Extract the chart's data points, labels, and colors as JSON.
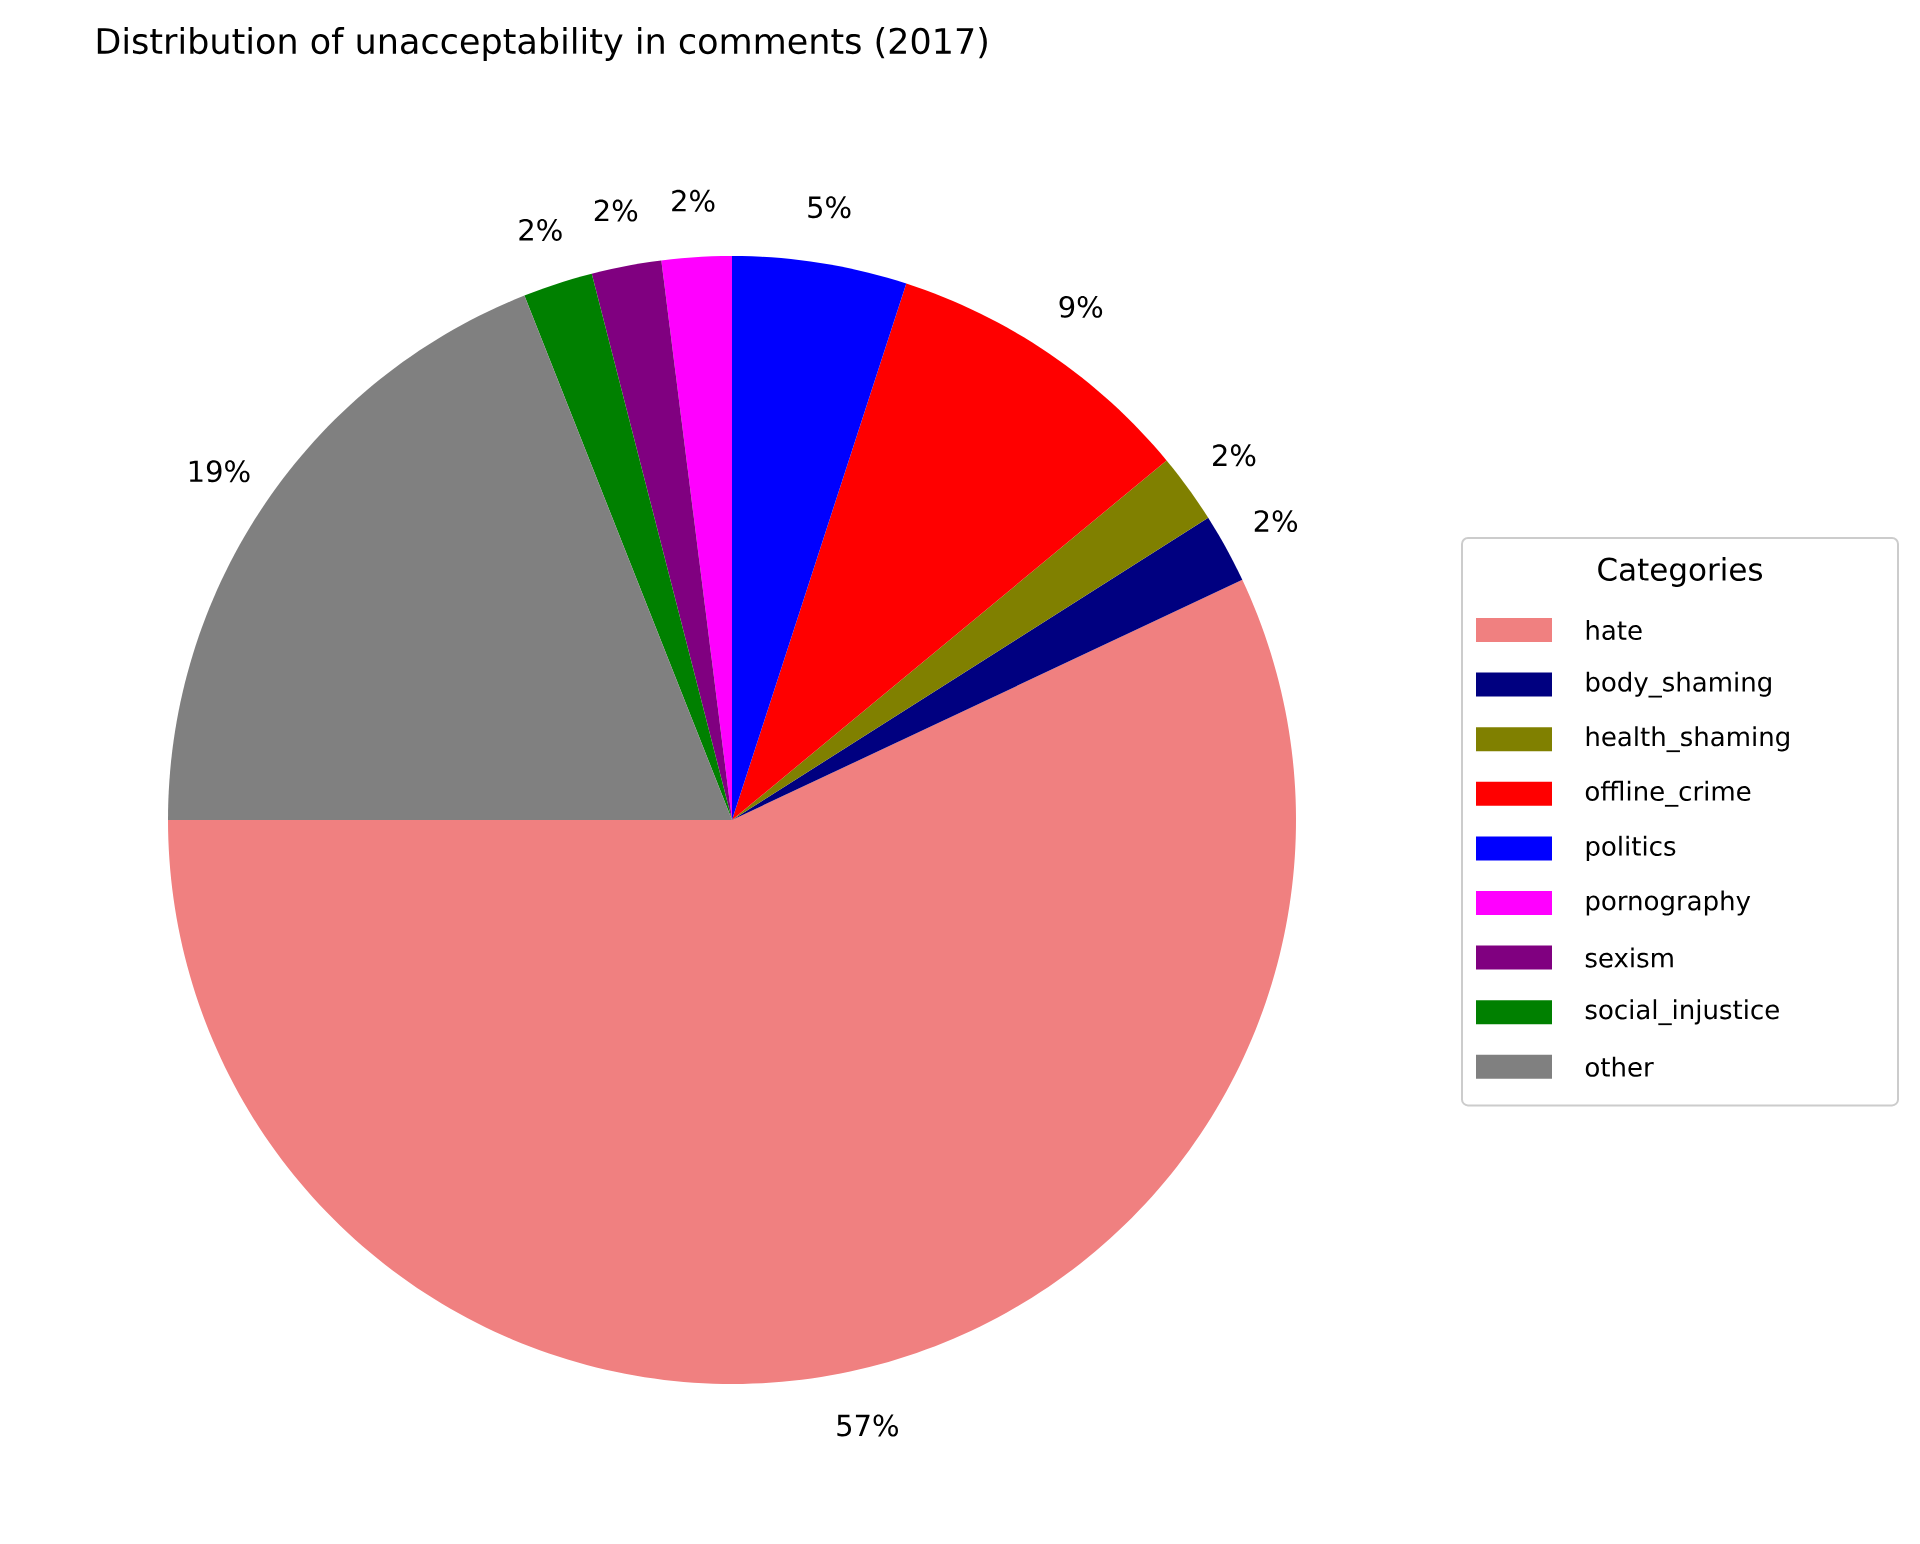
{
  "chart_data": {
    "type": "pie",
    "title": "Distribution of unacceptability in comments (2017)",
    "legend_title": "Categories",
    "legend": "right",
    "categories": [
      "hate",
      "body_shaming",
      "health_shaming",
      "offline_crime",
      "politics",
      "pornography",
      "sexism",
      "social_injustice",
      "other"
    ],
    "values": [
      57,
      2,
      2,
      9,
      5,
      2,
      2,
      2,
      19
    ],
    "value_labels": [
      "57%",
      "2%",
      "2%",
      "9%",
      "5%",
      "2%",
      "2%",
      "2%",
      "19%"
    ],
    "colors": [
      "#f08080",
      "#000080",
      "#808000",
      "#ff0000",
      "#0000ff",
      "#ff00ff",
      "#800080",
      "#008000",
      "#808080"
    ]
  }
}
